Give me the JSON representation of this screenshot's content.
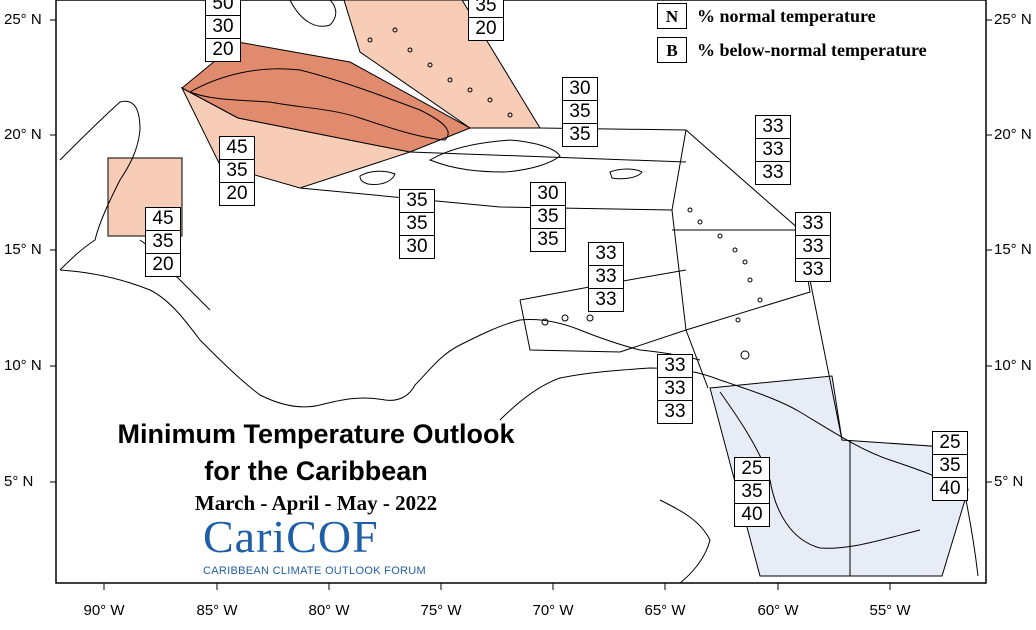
{
  "title": {
    "line1": "Minimum Temperature Outlook",
    "line2": "for the Caribbean",
    "period": "March - April - May - 2022"
  },
  "logo": {
    "wordmark": "CariCOF",
    "subtitle": "CARIBBEAN CLIMATE OUTLOOK FORUM",
    "color": "#1f5fa6"
  },
  "legend": [
    {
      "key": "N",
      "label": "% normal temperature"
    },
    {
      "key": "B",
      "label": "% below-normal temperature"
    }
  ],
  "axes": {
    "lat_labels": [
      "25° N",
      "20° N",
      "15° N",
      "10° N",
      "5° N"
    ],
    "lon_labels": [
      "90° W",
      "85° W",
      "80° W",
      "75° W",
      "70° W",
      "65° W",
      "60° W",
      "55° W"
    ]
  },
  "colors": {
    "above_strong": "#e08a6e",
    "above_light": "#f8cdb8",
    "below_light": "#e8ecf7"
  },
  "regions": [
    {
      "name": "north-top-left",
      "values": [
        "50",
        "30",
        "20"
      ]
    },
    {
      "name": "north-top-right",
      "values": [
        "35",
        "20"
      ]
    },
    {
      "name": "cuba-south",
      "values": [
        "45",
        "35",
        "20"
      ]
    },
    {
      "name": "belize",
      "values": [
        "45",
        "35",
        "20"
      ]
    },
    {
      "name": "jamaica",
      "values": [
        "35",
        "35",
        "30"
      ]
    },
    {
      "name": "hispaniola",
      "values": [
        "30",
        "35",
        "35"
      ]
    },
    {
      "name": "puerto-rico-north",
      "values": [
        "30",
        "35",
        "35"
      ]
    },
    {
      "name": "leeward-islands",
      "values": [
        "33",
        "33",
        "33"
      ]
    },
    {
      "name": "windward-islands",
      "values": [
        "33",
        "33",
        "33"
      ]
    },
    {
      "name": "abc-islands",
      "values": [
        "33",
        "33",
        "33"
      ]
    },
    {
      "name": "trinidad",
      "values": [
        "33",
        "33",
        "33"
      ]
    },
    {
      "name": "guyana",
      "values": [
        "25",
        "35",
        "40"
      ]
    },
    {
      "name": "suriname",
      "values": [
        "25",
        "35",
        "40"
      ]
    }
  ]
}
